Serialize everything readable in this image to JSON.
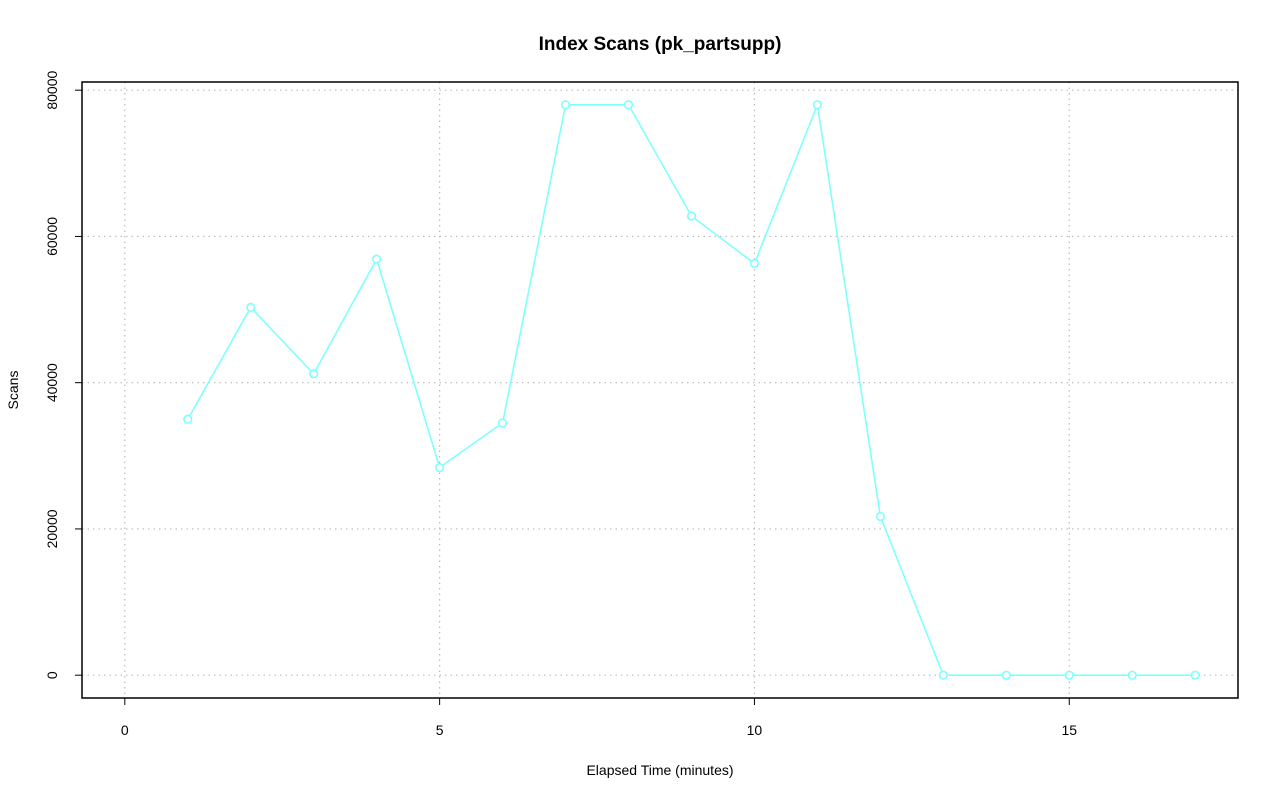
{
  "chart_data": {
    "type": "line",
    "title": "Index Scans (pk_partsupp)",
    "x_label": "Elapsed Time (minutes)",
    "y_label": "Scans",
    "x": [
      1,
      2,
      3,
      4,
      5,
      6,
      7,
      8,
      9,
      10,
      11,
      12,
      13,
      14,
      15,
      16,
      17
    ],
    "series": [
      {
        "name": "pk_partsupp",
        "color": "#80ffff",
        "values": [
          35000,
          50300,
          41200,
          56900,
          28400,
          34500,
          78000,
          78000,
          62800,
          56300,
          78000,
          21700,
          0,
          0,
          0,
          0,
          0
        ]
      }
    ],
    "xlim": [
      -0.68,
      17.68
    ],
    "xticks": [
      0,
      5,
      10,
      15
    ],
    "ylim": [
      -3120,
      81120
    ],
    "yticks": [
      0,
      20000,
      40000,
      60000,
      80000
    ],
    "grid": true
  }
}
